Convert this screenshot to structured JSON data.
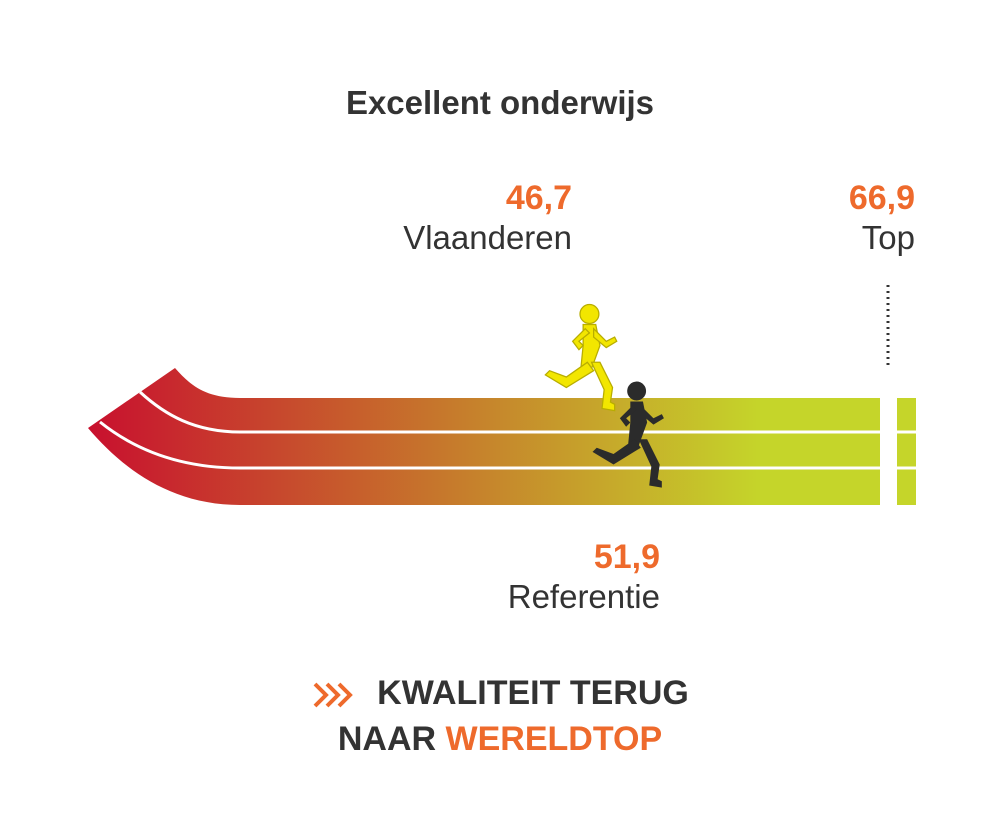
{
  "chart_data": {
    "type": "bar",
    "title": "Excellent onderwijs",
    "categories": [
      "Vlaanderen",
      "Referentie",
      "Top"
    ],
    "values": [
      46.7,
      51.9,
      66.9
    ],
    "value_labels": [
      "46,7",
      "51,9",
      "66,9"
    ],
    "xlim": [
      0,
      66.9
    ],
    "grid": false,
    "legend": "none"
  },
  "slogan": {
    "line1": "KWALITEIT TERUG",
    "line2_prefix": "NAAR ",
    "line2_accent": "WERELDTOP"
  },
  "colors": {
    "accent": "#ee6a2c",
    "text": "#333333",
    "track_start": "#c8102e",
    "track_end": "#c5d52a",
    "runner_vlaanderen": "#f2e600",
    "runner_referentie": "#2b2b2b"
  },
  "icons": [
    "runner-icon",
    "chevrons-icon"
  ]
}
